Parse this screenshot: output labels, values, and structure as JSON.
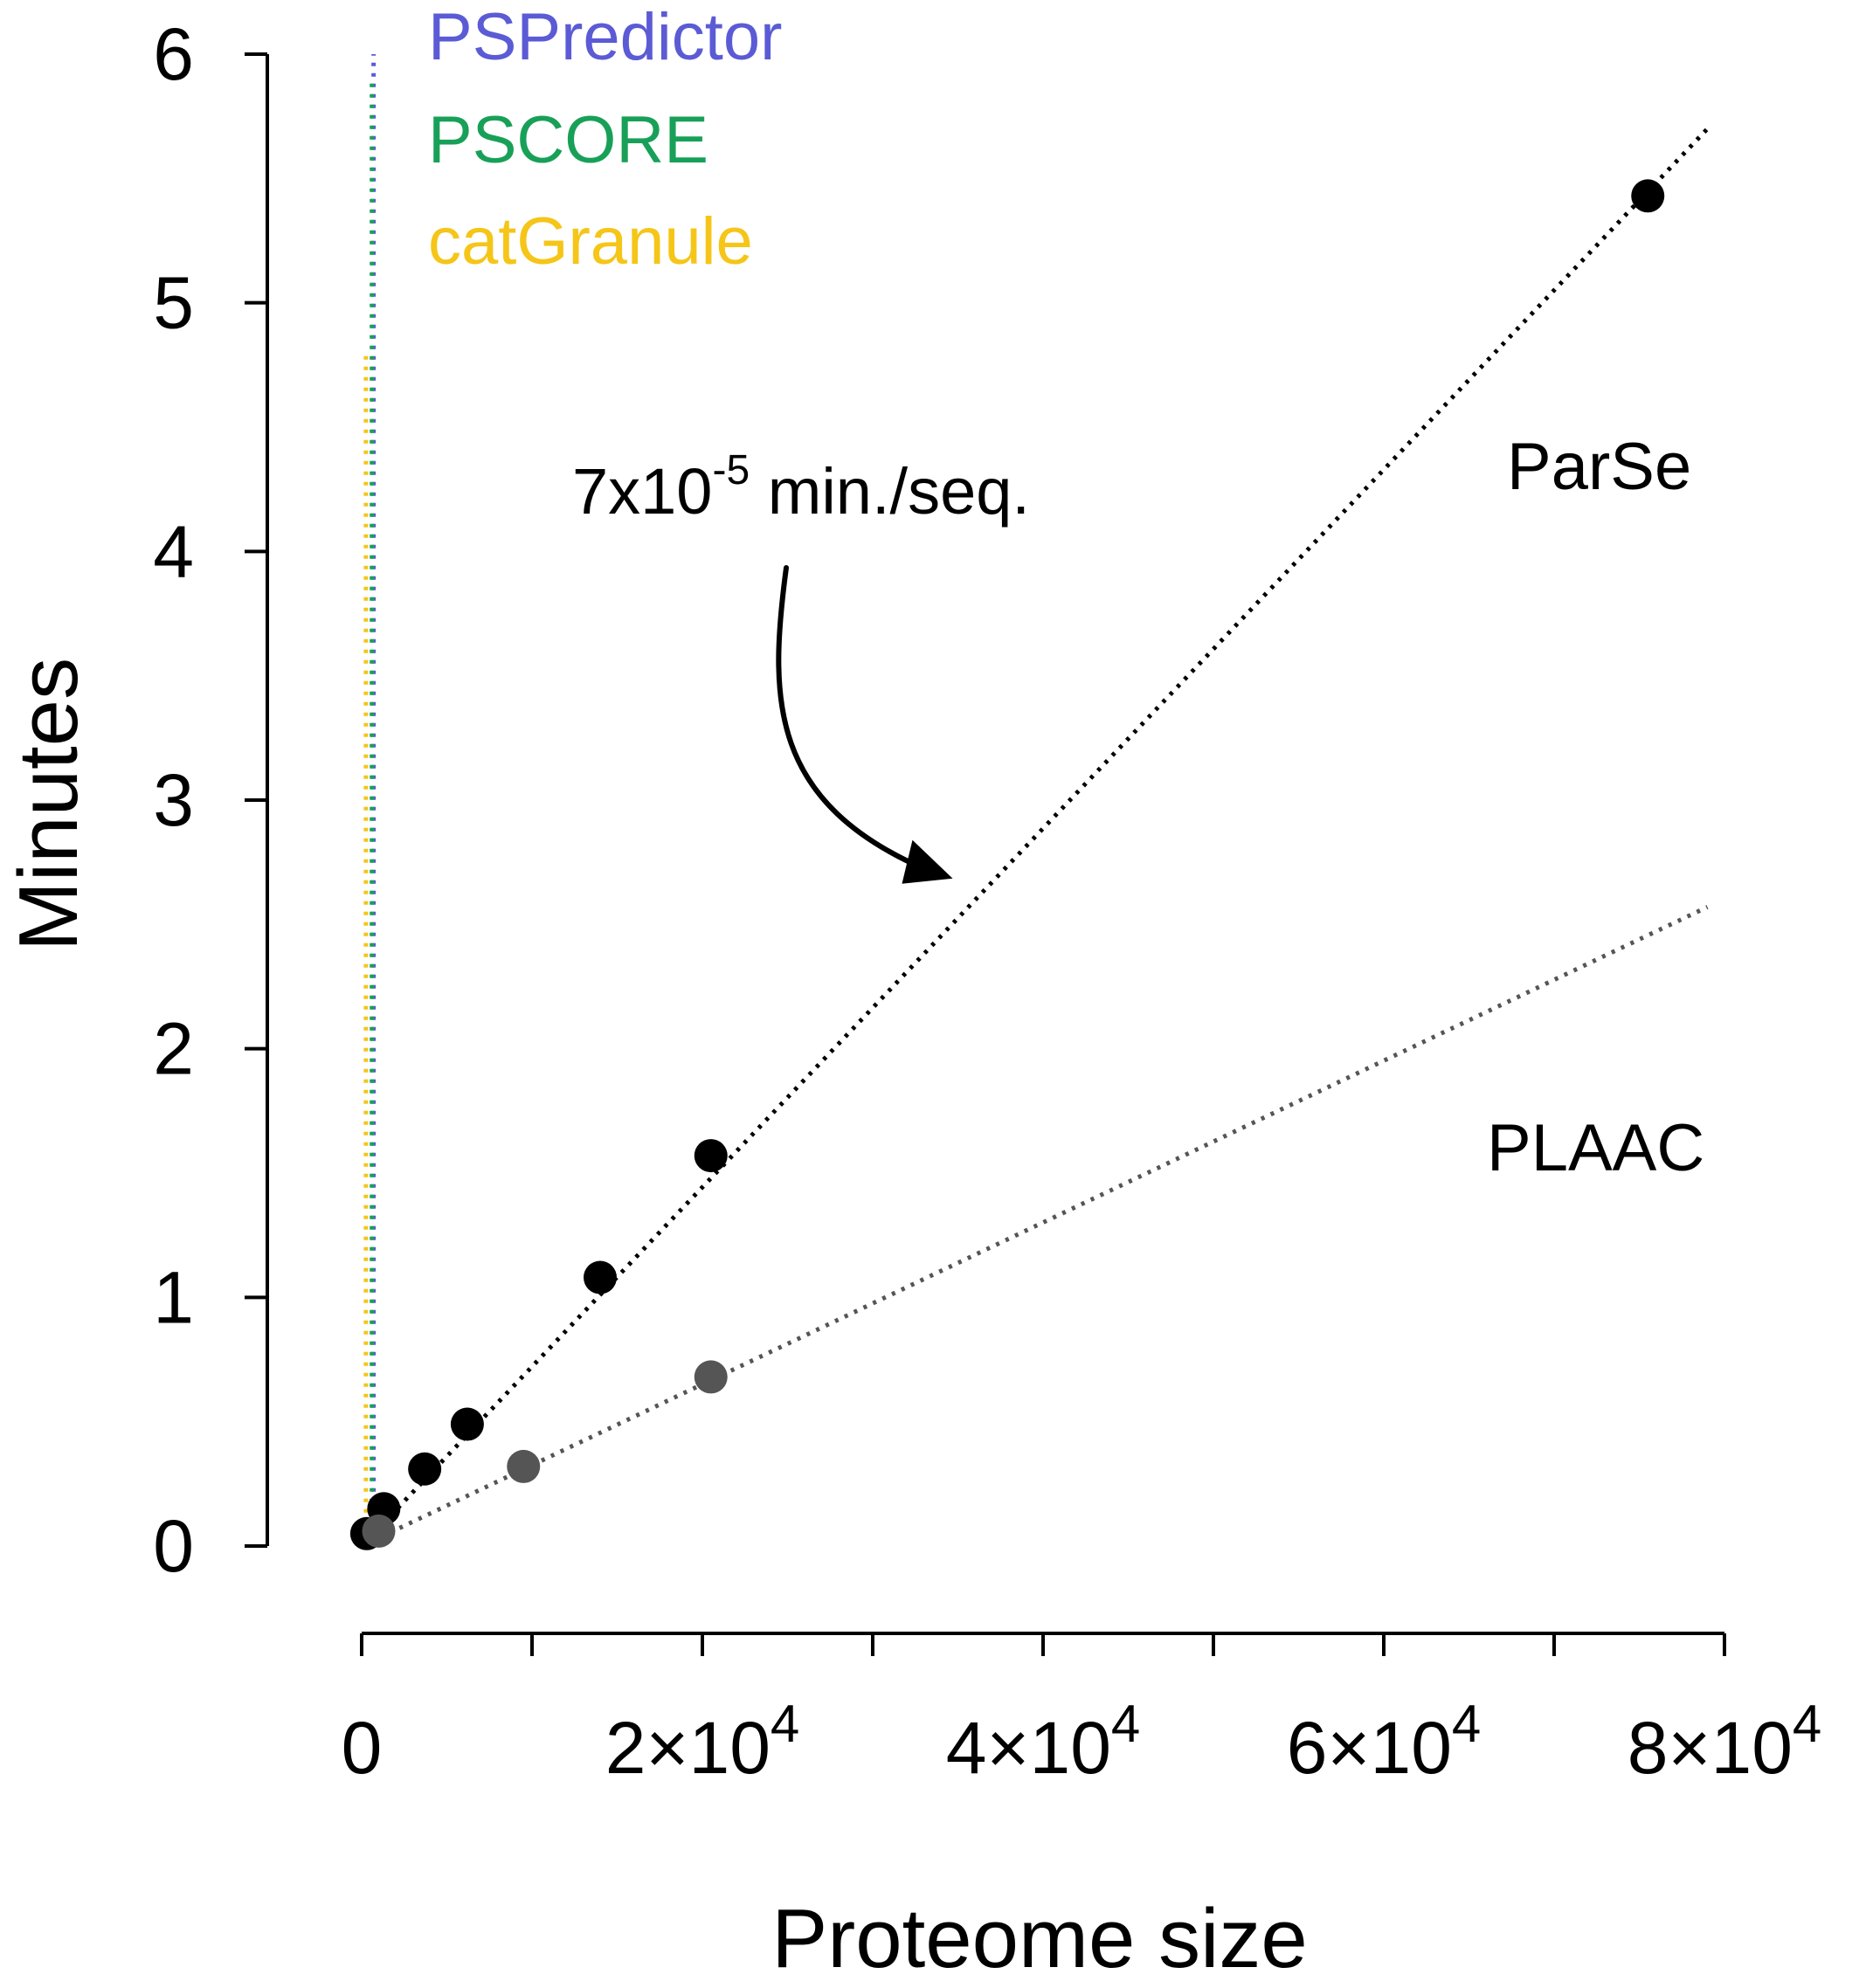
{
  "chart_data": {
    "type": "scatter",
    "xlabel": "Proteome size",
    "ylabel": "Minutes",
    "xlim": [
      0,
      80000
    ],
    "ylim": [
      0,
      6
    ],
    "x_ticks": [
      0,
      10000,
      20000,
      30000,
      40000,
      50000,
      60000,
      70000,
      80000
    ],
    "x_tick_labels": [
      {
        "x": 0,
        "base": "0",
        "exp": ""
      },
      {
        "x": 20000,
        "base": "2×10",
        "exp": "4"
      },
      {
        "x": 40000,
        "base": "4×10",
        "exp": "4"
      },
      {
        "x": 60000,
        "base": "6×10",
        "exp": "4"
      },
      {
        "x": 80000,
        "base": "8×10",
        "exp": "4"
      }
    ],
    "y_ticks": [
      0,
      1,
      2,
      3,
      4,
      5,
      6
    ],
    "y_tick_labels": [
      "0",
      "1",
      "2",
      "3",
      "4",
      "5",
      "6"
    ],
    "grid": false,
    "series": [
      {
        "name": "ParSe",
        "color": "#000000",
        "points": [
          [
            300,
            0.05
          ],
          [
            1300,
            0.15
          ],
          [
            3700,
            0.31
          ],
          [
            6200,
            0.49
          ],
          [
            14000,
            1.08
          ],
          [
            20500,
            1.57
          ],
          [
            75500,
            5.43
          ]
        ],
        "fit": [
          [
            0,
            0.0
          ],
          [
            79000,
            5.7
          ]
        ]
      },
      {
        "name": "PLAAC",
        "color": "#555555",
        "points": [
          [
            1000,
            0.06
          ],
          [
            9500,
            0.32
          ],
          [
            20500,
            0.68
          ]
        ],
        "fit": [
          [
            0,
            0.0
          ],
          [
            79000,
            2.57
          ]
        ]
      },
      {
        "name": "PSPredictor",
        "color": "#5b5bd6",
        "fit": [
          [
            700,
            0.05
          ],
          [
            700,
            6.0
          ]
        ]
      },
      {
        "name": "PSCORE",
        "color": "#18a058",
        "fit": [
          [
            600,
            0.05
          ],
          [
            600,
            5.9
          ]
        ]
      },
      {
        "name": "catGranule",
        "color": "#f5c518",
        "fit": [
          [
            250,
            0.05
          ],
          [
            250,
            4.8
          ]
        ]
      }
    ],
    "legend": [
      {
        "label": "PSPredictor",
        "color": "#5b5bd6"
      },
      {
        "label": "PSCORE",
        "color": "#18a058"
      },
      {
        "label": "catGranule",
        "color": "#f5c518"
      }
    ],
    "legend_placement": "top-left",
    "annotation": {
      "base": "7x10",
      "exp": "-5",
      "suffix": " min./seq.",
      "arrow_target": [
        35000,
        2.72
      ]
    }
  }
}
